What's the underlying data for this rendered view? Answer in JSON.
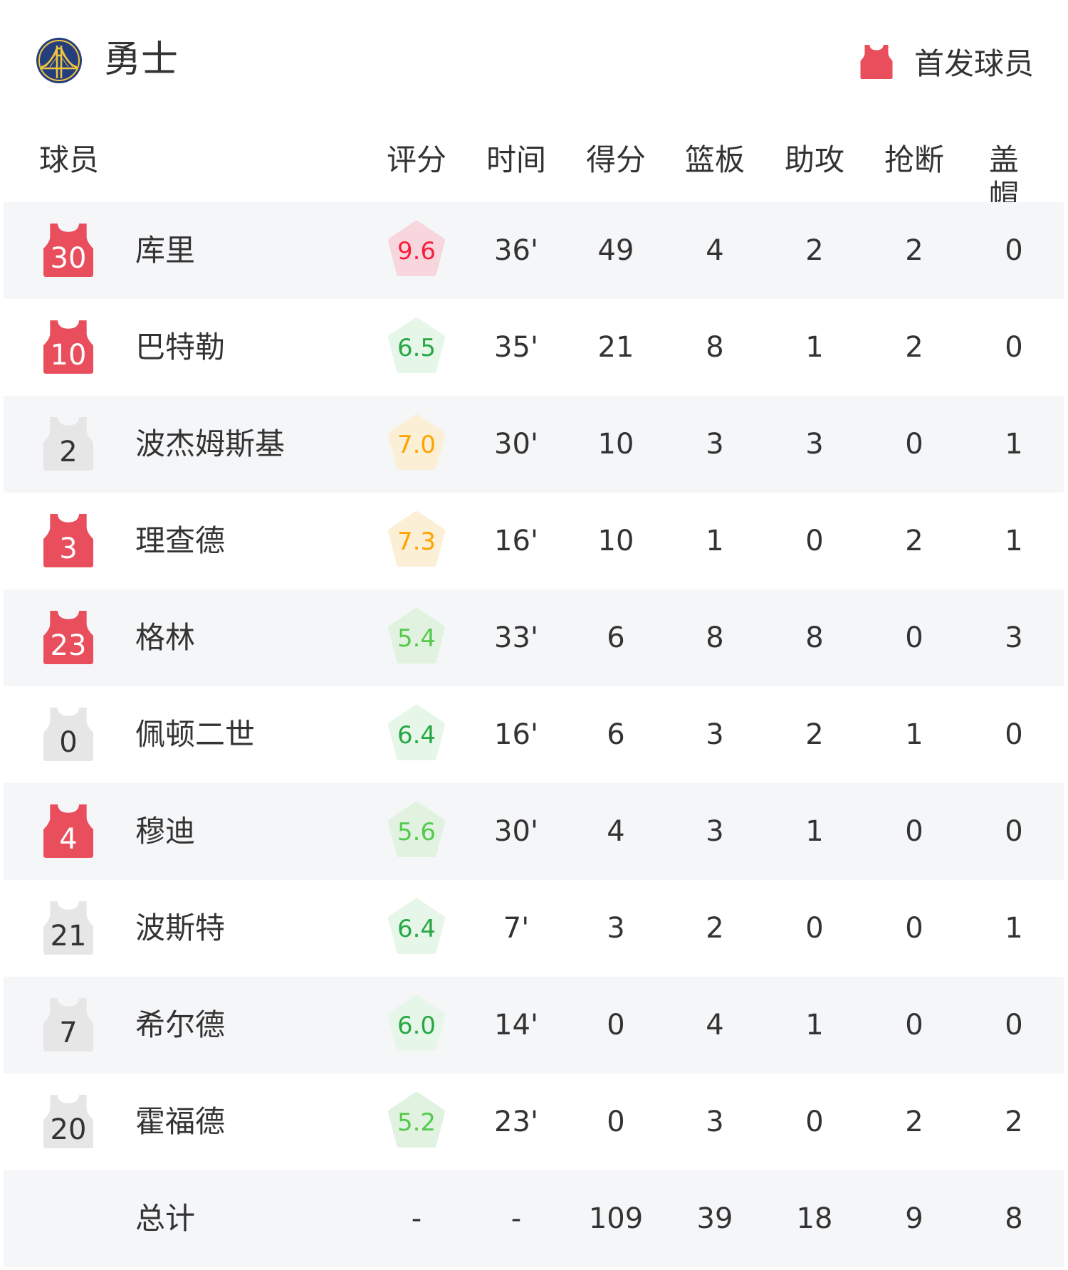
{
  "team": {
    "name": "勇士",
    "logo": "warriors-bridge-logo"
  },
  "legend": {
    "label": "首发球员",
    "icon": "jersey-icon",
    "color": "#e84e5c"
  },
  "colors": {
    "starter": "#e84e5c",
    "bench": "#e6e6e6"
  },
  "columns": [
    "球员",
    "评分",
    "时间",
    "得分",
    "篮板",
    "助攻",
    "抢断",
    "盖帽"
  ],
  "players": [
    {
      "number": "30",
      "name": "库里",
      "starter": true,
      "rating": "9.6",
      "rating_tone": "red",
      "min": "36'",
      "pts": "49",
      "reb": "4",
      "ast": "2",
      "stl": "2",
      "blk": "0"
    },
    {
      "number": "10",
      "name": "巴特勒",
      "starter": true,
      "rating": "6.5",
      "rating_tone": "green",
      "min": "35'",
      "pts": "21",
      "reb": "8",
      "ast": "1",
      "stl": "2",
      "blk": "0"
    },
    {
      "number": "2",
      "name": "波杰姆斯基",
      "starter": false,
      "rating": "7.0",
      "rating_tone": "orange",
      "min": "30'",
      "pts": "10",
      "reb": "3",
      "ast": "3",
      "stl": "0",
      "blk": "1"
    },
    {
      "number": "3",
      "name": "理查德",
      "starter": true,
      "rating": "7.3",
      "rating_tone": "orange",
      "min": "16'",
      "pts": "10",
      "reb": "1",
      "ast": "0",
      "stl": "2",
      "blk": "1"
    },
    {
      "number": "23",
      "name": "格林",
      "starter": true,
      "rating": "5.4",
      "rating_tone": "lightgreen",
      "min": "33'",
      "pts": "6",
      "reb": "8",
      "ast": "8",
      "stl": "0",
      "blk": "3"
    },
    {
      "number": "0",
      "name": "佩顿二世",
      "starter": false,
      "rating": "6.4",
      "rating_tone": "green",
      "min": "16'",
      "pts": "6",
      "reb": "3",
      "ast": "2",
      "stl": "1",
      "blk": "0"
    },
    {
      "number": "4",
      "name": "穆迪",
      "starter": true,
      "rating": "5.6",
      "rating_tone": "lightgreen",
      "min": "30'",
      "pts": "4",
      "reb": "3",
      "ast": "1",
      "stl": "0",
      "blk": "0"
    },
    {
      "number": "21",
      "name": "波斯特",
      "starter": false,
      "rating": "6.4",
      "rating_tone": "green",
      "min": "7'",
      "pts": "3",
      "reb": "2",
      "ast": "0",
      "stl": "0",
      "blk": "1"
    },
    {
      "number": "7",
      "name": "希尔德",
      "starter": false,
      "rating": "6.0",
      "rating_tone": "green",
      "min": "14'",
      "pts": "0",
      "reb": "4",
      "ast": "1",
      "stl": "0",
      "blk": "0"
    },
    {
      "number": "20",
      "name": "霍福德",
      "starter": false,
      "rating": "5.2",
      "rating_tone": "lightgreen",
      "min": "23'",
      "pts": "0",
      "reb": "3",
      "ast": "0",
      "stl": "2",
      "blk": "2"
    }
  ],
  "total": {
    "label": "总计",
    "rating": "-",
    "min": "-",
    "pts": "109",
    "reb": "39",
    "ast": "18",
    "stl": "9",
    "blk": "8"
  },
  "rating_tones": {
    "red": {
      "bg": "#f7d6dd",
      "fg": "#fa1e3c"
    },
    "green": {
      "bg": "#e6f6e8",
      "fg": "#27a844"
    },
    "lightgreen": {
      "bg": "#e1f3e0",
      "fg": "#55c94d"
    },
    "orange": {
      "bg": "#fbefd6",
      "fg": "#ffa300"
    }
  }
}
